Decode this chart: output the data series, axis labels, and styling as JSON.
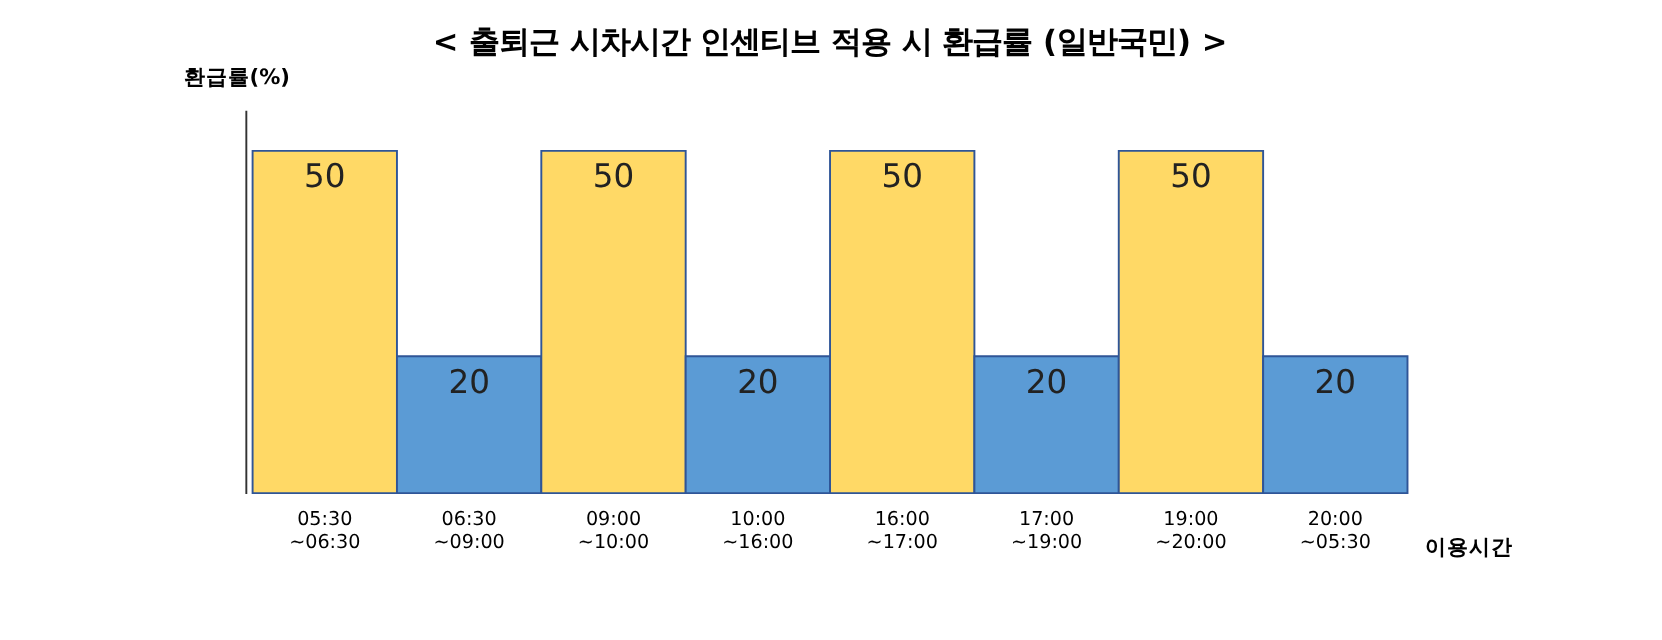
{
  "chart_data": {
    "type": "bar",
    "title": "< 출퇴근 시차시간 인센티브 적용 시 환급률 (일반국민) >",
    "ylabel": "환급률(%)",
    "xlabel": "이용시간",
    "categories": [
      "05:30\n~06:30",
      "06:30\n~09:00",
      "09:00\n~10:00",
      "10:00\n~16:00",
      "16:00\n~17:00",
      "17:00\n~19:00",
      "19:00\n~20:00",
      "20:00\n~05:30"
    ],
    "values": [
      50,
      20,
      50,
      20,
      50,
      20,
      50,
      20
    ],
    "colors": [
      "#ffd966",
      "#5b9bd5",
      "#ffd966",
      "#5b9bd5",
      "#ffd966",
      "#5b9bd5",
      "#ffd966",
      "#5b9bd5"
    ],
    "data_labels": true,
    "grid": false
  }
}
